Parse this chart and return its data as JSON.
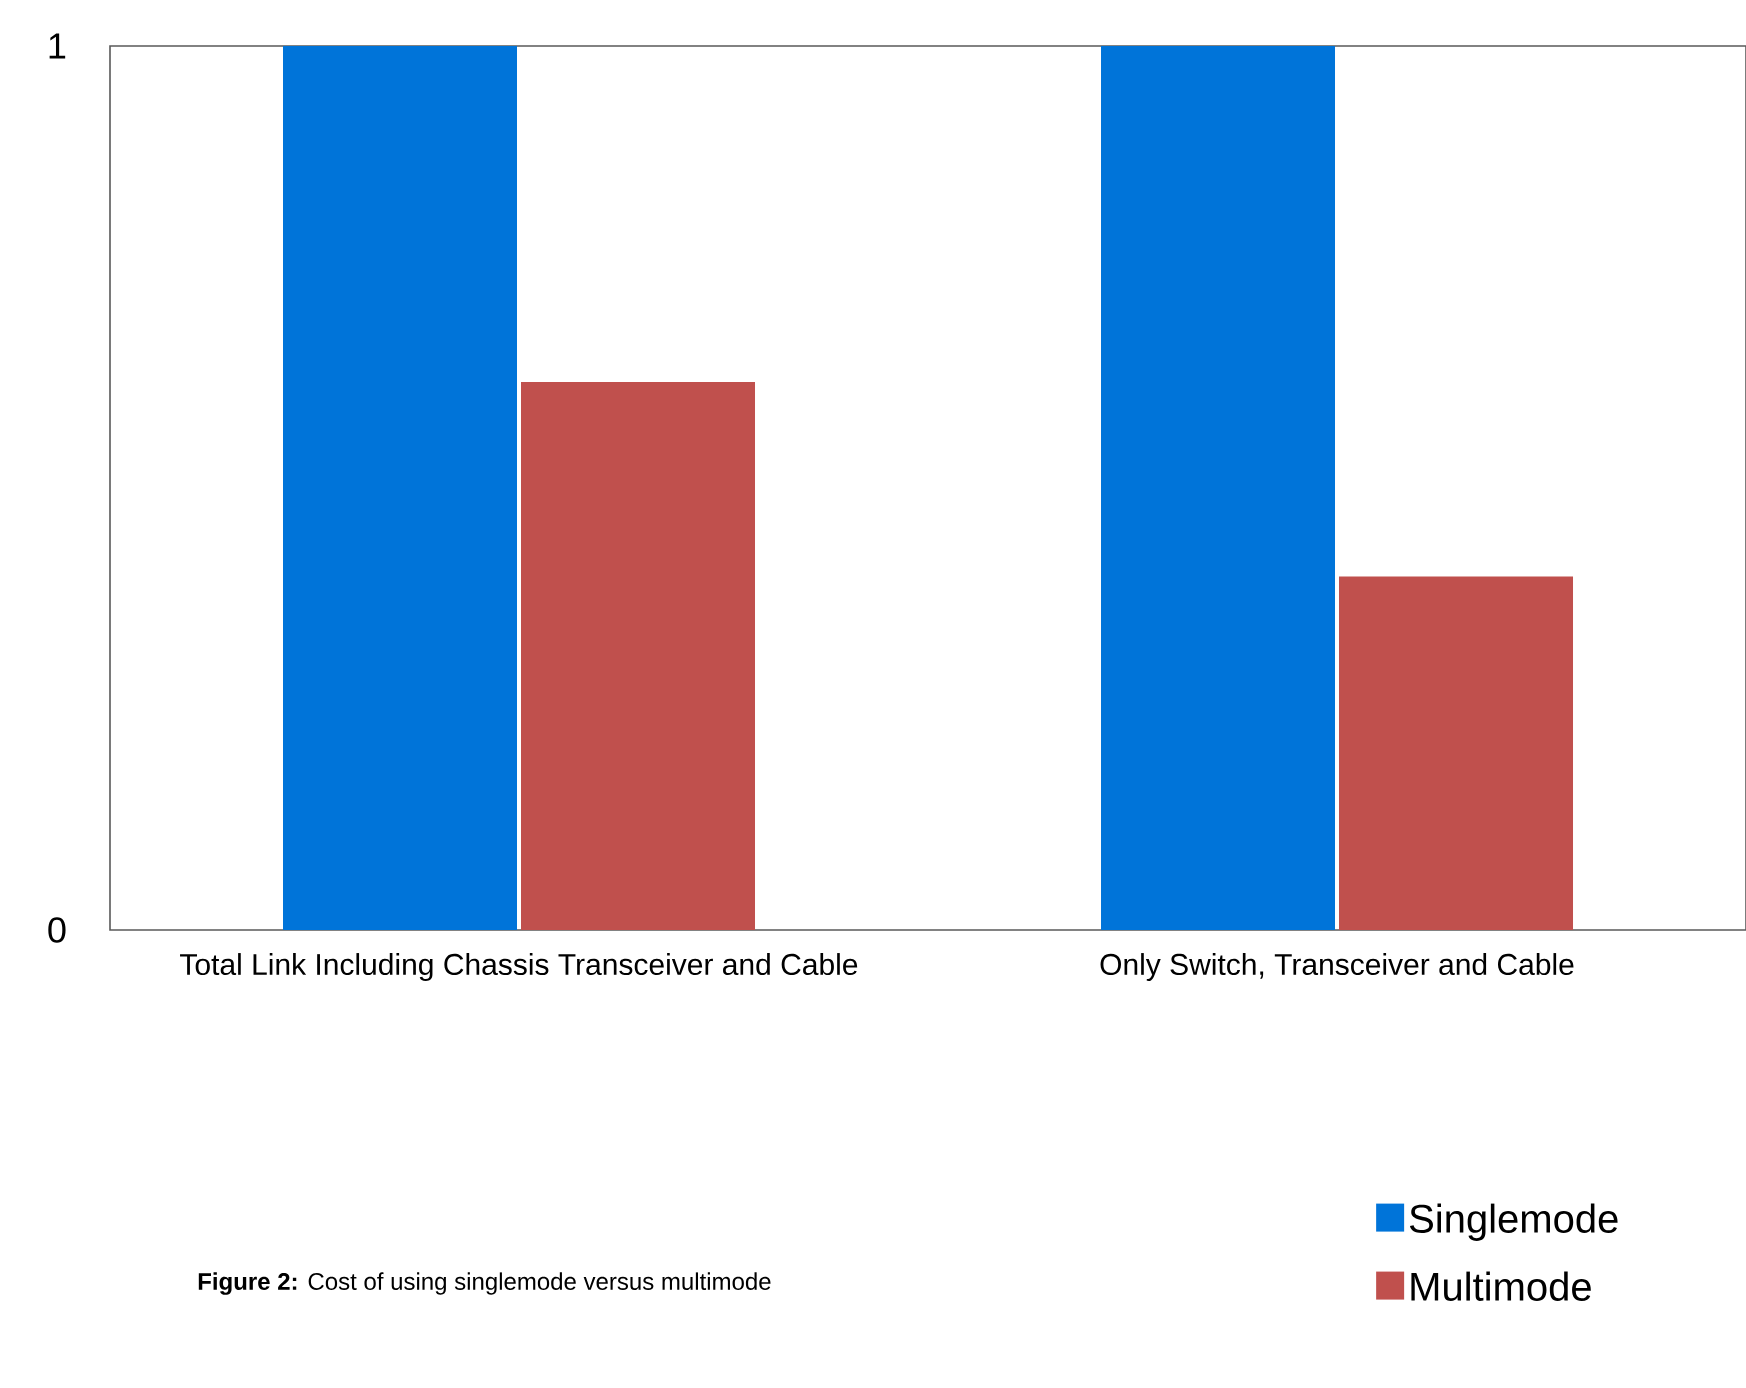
{
  "chart_data": {
    "type": "bar",
    "categories": [
      "Total Link Including Chassis Transceiver and Cable",
      "Only Switch, Transceiver and Cable"
    ],
    "series": [
      {
        "name": "Singlemode",
        "color": "#0074d9",
        "values": [
          1,
          1
        ]
      },
      {
        "name": "Multimode",
        "color": "#c0504d",
        "values": [
          0.62,
          0.4
        ]
      }
    ],
    "ylim": [
      0,
      1
    ],
    "yticks": [
      0,
      1
    ],
    "grid": false,
    "legend": "bottom right",
    "annotations": [
      "**Figure 2:** Cost of using singlemode versus multimode"
    ]
  }
}
